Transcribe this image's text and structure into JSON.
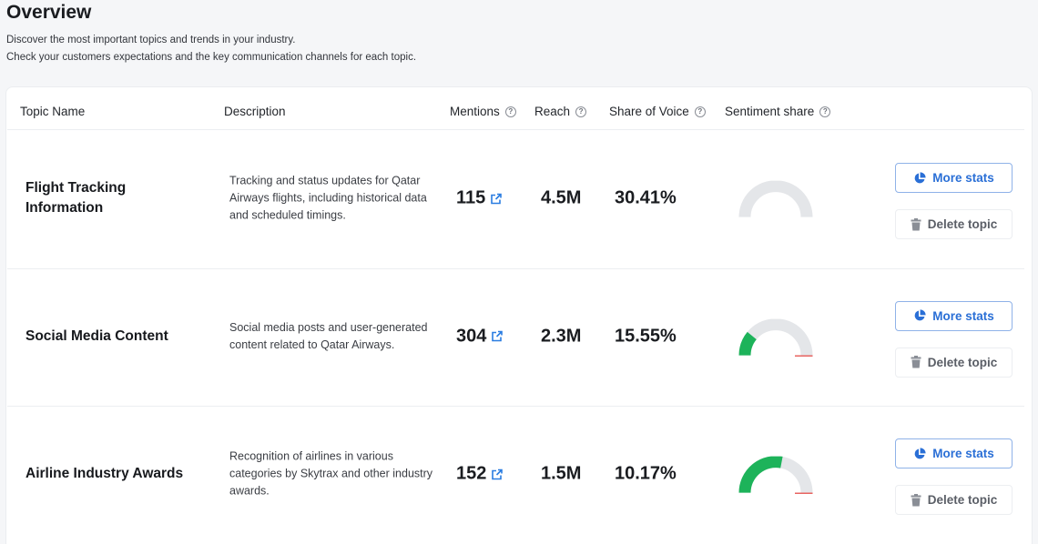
{
  "page": {
    "title": "Overview",
    "subtitle_1": "Discover the most important topics and trends in your industry.",
    "subtitle_2": "Check your customers expectations and the key communication channels for each topic."
  },
  "table": {
    "headers": {
      "topic_name": "Topic Name",
      "description": "Description",
      "mentions": "Mentions",
      "reach": "Reach",
      "share_of_voice": "Share of Voice",
      "sentiment_share": "Sentiment share"
    },
    "help_glyph": "?",
    "more_stats_label": "More stats",
    "delete_label": "Delete topic",
    "rows": [
      {
        "name": "Flight Tracking Information",
        "description": "Tracking and status updates for Qatar Airways flights, including historical data and scheduled timings.",
        "mentions": "115",
        "reach": "4.5M",
        "share_of_voice": "30.41%",
        "sentiment": {
          "positive": 0.0,
          "negative": 0.0
        }
      },
      {
        "name": "Social Media Content",
        "description": "Social media posts and user-generated content related to Qatar Airways.",
        "mentions": "304",
        "reach": "2.3M",
        "share_of_voice": "15.55%",
        "sentiment": {
          "positive": 0.22,
          "negative": 0.02
        }
      },
      {
        "name": "Airline Industry Awards",
        "description": "Recognition of airlines in various categories by Skytrax and other industry awards.",
        "mentions": "152",
        "reach": "1.5M",
        "share_of_voice": "10.17%",
        "sentiment": {
          "positive": 0.56,
          "negative": 0.02
        }
      }
    ]
  },
  "icons": {
    "help": "help-circle-icon",
    "external_link": "external-link-icon",
    "pie_chart": "pie-chart-icon",
    "trash": "trash-icon"
  },
  "colors": {
    "positive": "#1db35a",
    "negative": "#e0312d",
    "neutral": "#e4e6e9",
    "accent": "#2a6fd6"
  }
}
